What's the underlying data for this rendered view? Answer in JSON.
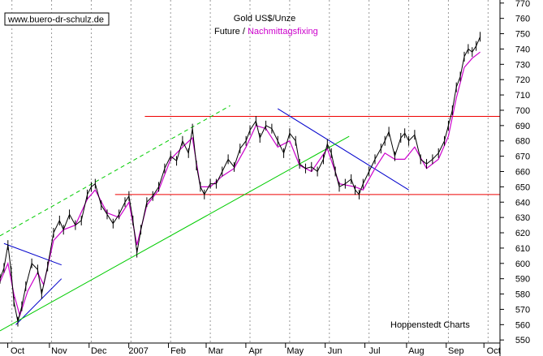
{
  "header": {
    "watermark": "www.buero-dr-schulz.de",
    "title": "Gold US$/Unze",
    "subtitle_part1": "Future / ",
    "subtitle_part2": "Nachmittagsfixing",
    "credit": "Hoppenstedt Charts"
  },
  "colors": {
    "future": "#000000",
    "fixing": "#cc00cc",
    "resistance": "#ee0000",
    "trend_down": "#0000cc",
    "trend_up": "#00cc00",
    "grid": "#999999"
  },
  "chart_data": {
    "type": "line",
    "title": "Gold US$/Unze",
    "ylim": [
      548,
      772
    ],
    "y_ticks": [
      550,
      560,
      570,
      580,
      590,
      600,
      610,
      620,
      630,
      640,
      650,
      660,
      670,
      680,
      690,
      700,
      710,
      720,
      730,
      740,
      750,
      760,
      770
    ],
    "x_range": [
      0,
      12.6
    ],
    "x_ticks": [
      {
        "label": "Oct",
        "x": 0.4
      },
      {
        "label": "Nov",
        "x": 1.45
      },
      {
        "label": "Dec",
        "x": 2.45
      },
      {
        "label": "2007",
        "x": 3.45
      },
      {
        "label": "Feb",
        "x": 4.45
      },
      {
        "label": "Mar",
        "x": 5.4
      },
      {
        "label": "Apr",
        "x": 6.4
      },
      {
        "label": "May",
        "x": 7.4
      },
      {
        "label": "Jun",
        "x": 8.4
      },
      {
        "label": "Jul",
        "x": 9.4
      },
      {
        "label": "Aug",
        "x": 10.45
      },
      {
        "label": "Sep",
        "x": 11.45
      },
      {
        "label": "Oct",
        "x": 12.4
      }
    ],
    "gridlines": [
      0.3,
      1.3,
      2.3,
      3.3,
      4.3,
      5.3,
      6.3,
      7.3,
      8.3,
      9.3,
      10.3,
      11.3,
      12.3
    ],
    "series": [
      {
        "name": "Future",
        "points": [
          [
            0.0,
            590
          ],
          [
            0.1,
            597
          ],
          [
            0.2,
            612
          ],
          [
            0.28,
            595
          ],
          [
            0.35,
            575
          ],
          [
            0.45,
            562
          ],
          [
            0.55,
            572
          ],
          [
            0.65,
            585
          ],
          [
            0.8,
            600
          ],
          [
            0.95,
            596
          ],
          [
            1.05,
            580
          ],
          [
            1.2,
            598
          ],
          [
            1.35,
            620
          ],
          [
            1.5,
            628
          ],
          [
            1.6,
            622
          ],
          [
            1.75,
            632
          ],
          [
            1.9,
            625
          ],
          [
            2.05,
            628
          ],
          [
            2.2,
            645
          ],
          [
            2.3,
            650
          ],
          [
            2.4,
            652
          ],
          [
            2.55,
            638
          ],
          [
            2.7,
            632
          ],
          [
            2.85,
            626
          ],
          [
            3.0,
            632
          ],
          [
            3.15,
            640
          ],
          [
            3.25,
            644
          ],
          [
            3.35,
            628
          ],
          [
            3.45,
            607
          ],
          [
            3.55,
            622
          ],
          [
            3.7,
            640
          ],
          [
            3.85,
            644
          ],
          [
            4.0,
            650
          ],
          [
            4.15,
            662
          ],
          [
            4.3,
            670
          ],
          [
            4.45,
            667
          ],
          [
            4.6,
            680
          ],
          [
            4.75,
            672
          ],
          [
            4.85,
            688
          ],
          [
            4.95,
            664
          ],
          [
            5.05,
            650
          ],
          [
            5.15,
            645
          ],
          [
            5.3,
            652
          ],
          [
            5.45,
            652
          ],
          [
            5.6,
            660
          ],
          [
            5.75,
            668
          ],
          [
            5.9,
            663
          ],
          [
            6.05,
            675
          ],
          [
            6.2,
            680
          ],
          [
            6.3,
            687
          ],
          [
            6.45,
            693
          ],
          [
            6.55,
            682
          ],
          [
            6.7,
            690
          ],
          [
            6.85,
            688
          ],
          [
            7.0,
            680
          ],
          [
            7.15,
            672
          ],
          [
            7.3,
            685
          ],
          [
            7.45,
            680
          ],
          [
            7.55,
            665
          ],
          [
            7.7,
            662
          ],
          [
            7.85,
            663
          ],
          [
            8.0,
            660
          ],
          [
            8.15,
            668
          ],
          [
            8.25,
            678
          ],
          [
            8.35,
            672
          ],
          [
            8.45,
            660
          ],
          [
            8.55,
            650
          ],
          [
            8.7,
            652
          ],
          [
            8.85,
            655
          ],
          [
            8.95,
            648
          ],
          [
            9.05,
            645
          ],
          [
            9.15,
            652
          ],
          [
            9.3,
            660
          ],
          [
            9.45,
            668
          ],
          [
            9.6,
            675
          ],
          [
            9.7,
            680
          ],
          [
            9.8,
            686
          ],
          [
            9.95,
            670
          ],
          [
            10.1,
            682
          ],
          [
            10.2,
            685
          ],
          [
            10.3,
            680
          ],
          [
            10.45,
            684
          ],
          [
            10.6,
            668
          ],
          [
            10.75,
            665
          ],
          [
            10.9,
            668
          ],
          [
            11.05,
            672
          ],
          [
            11.2,
            680
          ],
          [
            11.3,
            690
          ],
          [
            11.4,
            700
          ],
          [
            11.5,
            715
          ],
          [
            11.6,
            722
          ],
          [
            11.7,
            735
          ],
          [
            11.8,
            740
          ],
          [
            11.9,
            738
          ],
          [
            12.0,
            742
          ],
          [
            12.1,
            748
          ]
        ]
      },
      {
        "name": "Nachmittagsfixing",
        "points": [
          [
            0.0,
            588
          ],
          [
            0.2,
            600
          ],
          [
            0.35,
            580
          ],
          [
            0.5,
            566
          ],
          [
            0.7,
            582
          ],
          [
            0.95,
            594
          ],
          [
            1.1,
            586
          ],
          [
            1.35,
            615
          ],
          [
            1.6,
            622
          ],
          [
            1.9,
            625
          ],
          [
            2.2,
            642
          ],
          [
            2.4,
            648
          ],
          [
            2.7,
            633
          ],
          [
            3.0,
            630
          ],
          [
            3.25,
            640
          ],
          [
            3.45,
            612
          ],
          [
            3.7,
            638
          ],
          [
            4.0,
            648
          ],
          [
            4.3,
            668
          ],
          [
            4.6,
            676
          ],
          [
            4.85,
            682
          ],
          [
            5.05,
            650
          ],
          [
            5.3,
            650
          ],
          [
            5.6,
            657
          ],
          [
            5.9,
            662
          ],
          [
            6.2,
            676
          ],
          [
            6.45,
            690
          ],
          [
            6.7,
            688
          ],
          [
            7.0,
            676
          ],
          [
            7.3,
            680
          ],
          [
            7.55,
            664
          ],
          [
            7.85,
            660
          ],
          [
            8.25,
            675
          ],
          [
            8.55,
            652
          ],
          [
            8.95,
            650
          ],
          [
            9.15,
            648
          ],
          [
            9.45,
            662
          ],
          [
            9.7,
            672
          ],
          [
            9.95,
            668
          ],
          [
            10.2,
            668
          ],
          [
            10.45,
            676
          ],
          [
            10.75,
            662
          ],
          [
            11.05,
            668
          ],
          [
            11.3,
            683
          ],
          [
            11.5,
            708
          ],
          [
            11.7,
            728
          ],
          [
            11.9,
            734
          ],
          [
            12.1,
            738
          ]
        ]
      }
    ],
    "lines": [
      {
        "name": "resistance-upper",
        "kind": "horizontal",
        "x1": 3.65,
        "x2": 12.6,
        "y1": 696,
        "y2": 696,
        "color": "#ee0000"
      },
      {
        "name": "support-lower",
        "kind": "horizontal",
        "x1": 2.9,
        "x2": 12.6,
        "y1": 645,
        "y2": 645,
        "color": "#ee0000"
      },
      {
        "name": "trend-down-main",
        "kind": "trend",
        "x1": 7.0,
        "x2": 10.3,
        "y1": 701,
        "y2": 648,
        "color": "#0000cc"
      },
      {
        "name": "trend-down-small",
        "kind": "trend",
        "x1": 0.1,
        "x2": 1.55,
        "y1": 613,
        "y2": 599,
        "color": "#0000cc"
      },
      {
        "name": "trend-up-small",
        "kind": "trend",
        "x1": 0.4,
        "x2": 1.55,
        "y1": 560,
        "y2": 590,
        "color": "#0000cc"
      },
      {
        "name": "channel-lower",
        "kind": "trend",
        "x1": 0.0,
        "x2": 8.8,
        "y1": 556,
        "y2": 683,
        "color": "#00cc00",
        "dashed": false
      },
      {
        "name": "channel-upper",
        "kind": "trend",
        "x1": 0.0,
        "x2": 5.8,
        "y1": 618,
        "y2": 703,
        "color": "#00cc00",
        "dashed": true
      }
    ]
  }
}
